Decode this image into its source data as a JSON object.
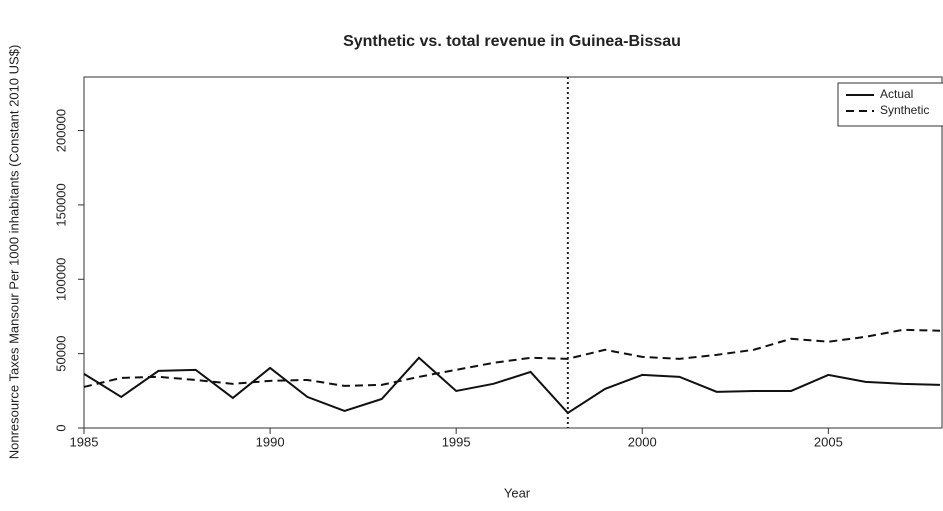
{
  "chart_data": {
    "type": "line",
    "title": "Synthetic vs. total revenue in Guinea-Bissau",
    "x_label": "Year",
    "y_label": "Nonresource Taxes Mansour Per 1000 inhabitants (Constant 2010 US$)",
    "x": [
      1985,
      1986,
      1987,
      1988,
      1989,
      1990,
      1991,
      1992,
      1993,
      1994,
      1995,
      1996,
      1997,
      1998,
      1999,
      2000,
      2001,
      2002,
      2003,
      2004,
      2005,
      2006,
      2007,
      2008
    ],
    "series": [
      {
        "name": "Actual",
        "color": "#111111",
        "dash": "solid",
        "values": [
          36400,
          20900,
          38400,
          39100,
          20200,
          40400,
          20900,
          11500,
          19500,
          47200,
          24900,
          29700,
          37700,
          10100,
          26300,
          35700,
          34400,
          24300,
          24900,
          24900,
          35700,
          31000,
          29700,
          29000
        ]
      },
      {
        "name": "Synthetic",
        "color": "#111111",
        "dash": "dashed",
        "values": [
          27600,
          33700,
          34400,
          32300,
          29700,
          31700,
          32300,
          28300,
          29000,
          34400,
          39100,
          43800,
          47200,
          46500,
          52600,
          47800,
          46500,
          49200,
          52600,
          60000,
          58000,
          61300,
          66000,
          65400
        ]
      }
    ],
    "vline": 1998,
    "xlim": [
      1985,
      2008
    ],
    "xticks": [
      1985,
      1990,
      1995,
      2000,
      2005
    ],
    "ylim": [
      0,
      236000
    ],
    "yticks": [
      0,
      50000,
      100000,
      150000,
      200000
    ],
    "legend": "top-right"
  }
}
